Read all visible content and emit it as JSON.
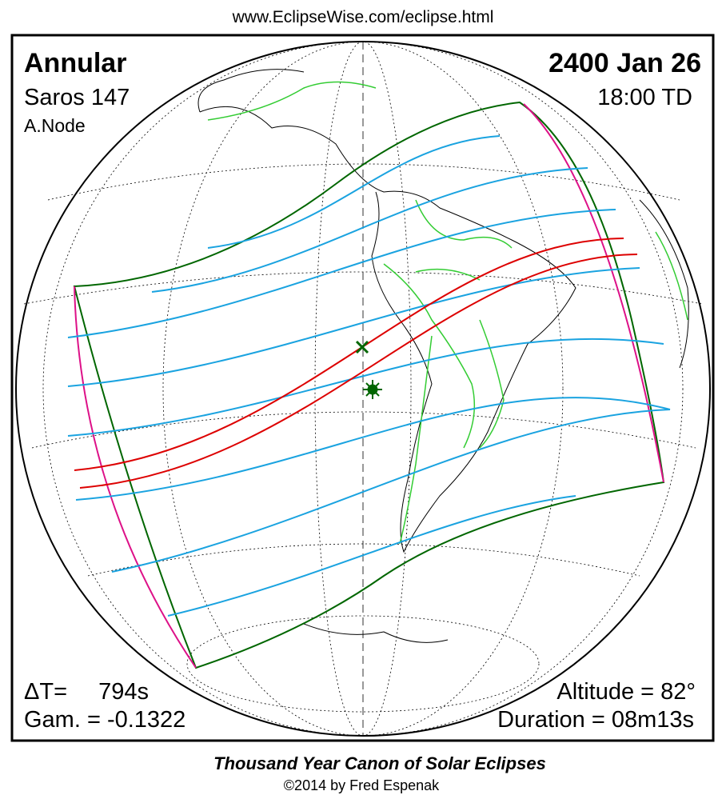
{
  "header": {
    "url": "www.EclipseWise.com/eclipse.html"
  },
  "eclipse": {
    "type": "Annular",
    "saros": "Saros 147",
    "node": "A.Node",
    "date": "2400 Jan 26",
    "time": "18:00 TD",
    "delta_t_label": "ΔT=",
    "delta_t_value": "794s",
    "gamma": "Gam. = -0.1322",
    "altitude": "Altitude = 82°",
    "duration": "Duration = 08m13s"
  },
  "footer": {
    "title": "Thousand Year Canon of Solar Eclipses",
    "copyright": "©2014 by Fred Espenak"
  }
}
